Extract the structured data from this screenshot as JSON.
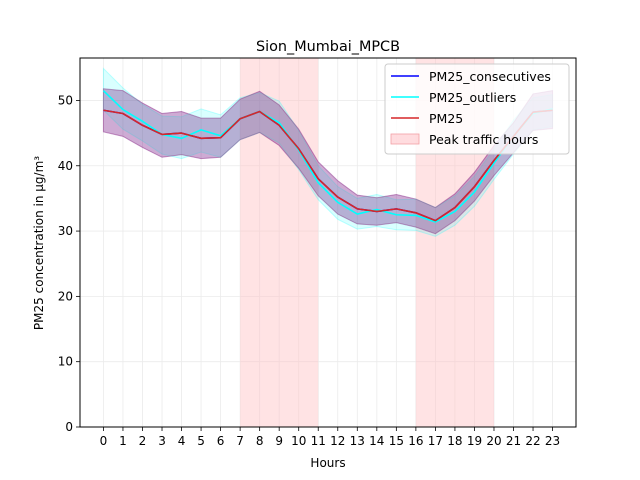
{
  "chart_data": {
    "type": "line",
    "title": "Sion_Mumbai_MPCB",
    "xlabel": "Hours",
    "ylabel": "PM25 concentration in µg/m³",
    "x": [
      0,
      1,
      2,
      3,
      4,
      5,
      6,
      7,
      8,
      9,
      10,
      11,
      12,
      13,
      14,
      15,
      16,
      17,
      18,
      19,
      20,
      21,
      22,
      23
    ],
    "xlim": [
      -1.2,
      24.2
    ],
    "ylim": [
      0,
      56.5
    ],
    "yticks": [
      0,
      10,
      20,
      30,
      40,
      50
    ],
    "grid": true,
    "legend_position": "top-right",
    "shaded_regions": [
      {
        "name": "Peak traffic hours",
        "from": 7,
        "to": 11,
        "color": "#ffc0c4"
      },
      {
        "name": "Peak traffic hours",
        "from": 16,
        "to": 20,
        "color": "#ffc0c4"
      }
    ],
    "series": [
      {
        "name": "PM25_consecutives",
        "color": "#0000ff",
        "values": [
          48.5,
          48.0,
          46.2,
          44.8,
          45.0,
          44.2,
          44.3,
          47.2,
          48.3,
          46.2,
          42.6,
          38.0,
          35.2,
          33.4,
          33.0,
          33.4,
          32.8,
          31.6,
          33.6,
          36.8,
          40.8,
          44.5,
          48.2,
          48.5
        ],
        "band_low": [
          45.2,
          44.5,
          42.8,
          41.3,
          41.7,
          41.1,
          41.3,
          44.0,
          45.1,
          43.1,
          39.6,
          35.4,
          32.6,
          31.1,
          30.9,
          31.3,
          30.6,
          29.6,
          31.6,
          34.6,
          38.5,
          42.0,
          45.4,
          45.7
        ],
        "band_high": [
          51.8,
          51.5,
          49.6,
          48.0,
          48.3,
          47.3,
          47.3,
          50.2,
          51.4,
          49.3,
          45.6,
          40.6,
          37.7,
          35.5,
          35.1,
          35.6,
          34.9,
          33.6,
          35.7,
          39.0,
          43.1,
          46.6,
          51.0,
          51.5
        ]
      },
      {
        "name": "PM25_outliers",
        "color": "#00ffff",
        "values": [
          51.5,
          48.6,
          46.8,
          44.8,
          44.2,
          45.5,
          44.6,
          47.2,
          48.3,
          46.6,
          42.4,
          37.4,
          34.4,
          32.6,
          33.3,
          32.5,
          32.4,
          31.4,
          33.0,
          36.0,
          40.4,
          44.5,
          48.0,
          48.7
        ],
        "band_low": [
          48.5,
          45.6,
          43.8,
          41.8,
          41.1,
          42.1,
          41.3,
          44.0,
          45.1,
          43.5,
          39.4,
          34.8,
          31.8,
          30.3,
          30.7,
          30.2,
          30.1,
          29.2,
          30.9,
          33.8,
          37.9,
          41.8,
          45.5,
          46.0
        ],
        "band_high": [
          54.9,
          51.9,
          49.4,
          47.6,
          47.5,
          48.7,
          47.8,
          50.4,
          51.2,
          49.9,
          45.4,
          40.0,
          36.8,
          35.0,
          35.6,
          34.8,
          34.9,
          33.6,
          35.4,
          38.4,
          42.6,
          47.0,
          50.4,
          50.9
        ]
      },
      {
        "name": "PM25",
        "color": "#d62728",
        "values": [
          48.5,
          48.0,
          46.2,
          44.8,
          45.0,
          44.2,
          44.3,
          47.2,
          48.3,
          46.2,
          42.6,
          38.0,
          35.2,
          33.4,
          33.0,
          33.4,
          32.8,
          31.6,
          33.6,
          36.8,
          40.8,
          44.5,
          48.2,
          48.5
        ],
        "band_low": [
          45.2,
          44.5,
          42.8,
          41.3,
          41.7,
          41.1,
          41.3,
          44.0,
          45.1,
          43.1,
          39.6,
          35.4,
          32.6,
          31.1,
          30.9,
          31.3,
          30.6,
          29.6,
          31.6,
          34.6,
          38.5,
          42.0,
          45.4,
          45.7
        ],
        "band_high": [
          51.8,
          51.5,
          49.6,
          48.0,
          48.3,
          47.3,
          47.3,
          50.2,
          51.4,
          49.3,
          45.6,
          40.6,
          37.7,
          35.5,
          35.1,
          35.6,
          34.9,
          33.6,
          35.7,
          39.0,
          43.1,
          46.6,
          51.0,
          51.5
        ]
      }
    ],
    "legend": [
      {
        "label": "PM25_consecutives",
        "kind": "line",
        "color": "#0000ff"
      },
      {
        "label": "PM25_outliers",
        "kind": "line",
        "color": "#00ffff"
      },
      {
        "label": "PM25",
        "kind": "line",
        "color": "#d62728"
      },
      {
        "label": "Peak traffic hours",
        "kind": "patch",
        "color": "#ffc0c4"
      }
    ]
  }
}
